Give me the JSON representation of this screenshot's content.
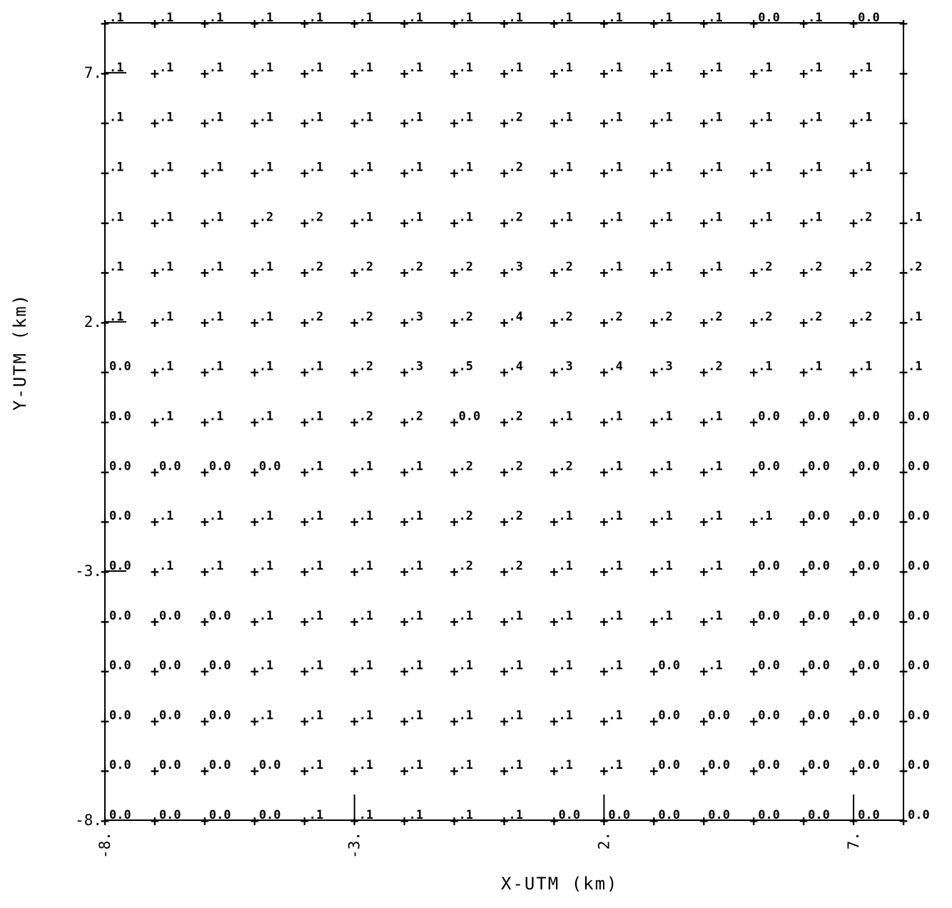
{
  "chart_data": {
    "type": "table",
    "title": "",
    "xlabel": "X-UTM (km)",
    "ylabel": "Y-UTM (km)",
    "xlim": [
      -8,
      8
    ],
    "ylim": [
      -8,
      8
    ],
    "x_ticks": [
      {
        "value": -8,
        "label": "-8."
      },
      {
        "value": -3,
        "label": "-3."
      },
      {
        "value": 2,
        "label": "2."
      },
      {
        "value": 7,
        "label": "7."
      }
    ],
    "y_ticks": [
      {
        "value": 7,
        "label": "7."
      },
      {
        "value": 2,
        "label": "2."
      },
      {
        "value": -3,
        "label": "-3."
      },
      {
        "value": -8,
        "label": "-8."
      }
    ],
    "grid": false,
    "x": [
      -8,
      -7,
      -6,
      -5,
      -4,
      -3,
      -2,
      -1,
      0,
      1,
      2,
      3,
      4,
      5,
      6,
      7,
      8
    ],
    "y": [
      8,
      7,
      6,
      5,
      4,
      3,
      2,
      1,
      0,
      -1,
      -2,
      -3,
      -4,
      -5,
      -6,
      -7,
      -8
    ],
    "values": [
      [
        ".1",
        ".1",
        ".1",
        ".1",
        ".1",
        ".1",
        ".1",
        ".1",
        ".1",
        ".1",
        ".1",
        ".1",
        ".1",
        "0.0",
        ".1",
        "0.0",
        ""
      ],
      [
        ".1",
        ".1",
        ".1",
        ".1",
        ".1",
        ".1",
        ".1",
        ".1",
        ".1",
        ".1",
        ".1",
        ".1",
        ".1",
        ".1",
        ".1",
        ".1",
        ""
      ],
      [
        ".1",
        ".1",
        ".1",
        ".1",
        ".1",
        ".1",
        ".1",
        ".1",
        ".2",
        ".1",
        ".1",
        ".1",
        ".1",
        ".1",
        ".1",
        ".1",
        ""
      ],
      [
        ".1",
        ".1",
        ".1",
        ".1",
        ".1",
        ".1",
        ".1",
        ".1",
        ".2",
        ".1",
        ".1",
        ".1",
        ".1",
        ".1",
        ".1",
        ".1",
        ""
      ],
      [
        ".1",
        ".1",
        ".1",
        ".2",
        ".2",
        ".1",
        ".1",
        ".1",
        ".2",
        ".1",
        ".1",
        ".1",
        ".1",
        ".1",
        ".1",
        ".2",
        ".1"
      ],
      [
        ".1",
        ".1",
        ".1",
        ".1",
        ".2",
        ".2",
        ".2",
        ".2",
        ".3",
        ".2",
        ".1",
        ".1",
        ".1",
        ".2",
        ".2",
        ".2",
        ".2"
      ],
      [
        ".1",
        ".1",
        ".1",
        ".1",
        ".2",
        ".2",
        ".3",
        ".2",
        ".4",
        ".2",
        ".2",
        ".2",
        ".2",
        ".2",
        ".2",
        ".2",
        ".1"
      ],
      [
        "0.0",
        ".1",
        ".1",
        ".1",
        ".1",
        ".2",
        ".3",
        ".5",
        ".4",
        ".3",
        ".4",
        ".3",
        ".2",
        ".1",
        ".1",
        ".1",
        ".1"
      ],
      [
        "0.0",
        ".1",
        ".1",
        ".1",
        ".1",
        ".2",
        ".2",
        "0.0",
        ".2",
        ".1",
        ".1",
        ".1",
        ".1",
        "0.0",
        "0.0",
        "0.0",
        "0.0"
      ],
      [
        "0.0",
        "0.0",
        "0.0",
        "0.0",
        ".1",
        ".1",
        ".1",
        ".2",
        ".2",
        ".2",
        ".1",
        ".1",
        ".1",
        "0.0",
        "0.0",
        "0.0",
        "0.0"
      ],
      [
        "0.0",
        ".1",
        ".1",
        ".1",
        ".1",
        ".1",
        ".1",
        ".2",
        ".2",
        ".1",
        ".1",
        ".1",
        ".1",
        ".1",
        "0.0",
        "0.0",
        "0.0"
      ],
      [
        "0.0",
        ".1",
        ".1",
        ".1",
        ".1",
        ".1",
        ".1",
        ".2",
        ".2",
        ".1",
        ".1",
        ".1",
        ".1",
        "0.0",
        "0.0",
        "0.0",
        "0.0"
      ],
      [
        "0.0",
        "0.0",
        "0.0",
        ".1",
        ".1",
        ".1",
        ".1",
        ".1",
        ".1",
        ".1",
        ".1",
        ".1",
        ".1",
        "0.0",
        "0.0",
        "0.0",
        "0.0"
      ],
      [
        "0.0",
        "0.0",
        "0.0",
        ".1",
        ".1",
        ".1",
        ".1",
        ".1",
        ".1",
        ".1",
        ".1",
        "0.0",
        ".1",
        "0.0",
        "0.0",
        "0.0",
        "0.0"
      ],
      [
        "0.0",
        "0.0",
        "0.0",
        ".1",
        ".1",
        ".1",
        ".1",
        ".1",
        ".1",
        ".1",
        ".1",
        "0.0",
        "0.0",
        "0.0",
        "0.0",
        "0.0",
        "0.0"
      ],
      [
        "0.0",
        "0.0",
        "0.0",
        "0.0",
        ".1",
        ".1",
        ".1",
        ".1",
        ".1",
        ".1",
        ".1",
        "0.0",
        "0.0",
        "0.0",
        "0.0",
        "0.0",
        "0.0"
      ],
      [
        "0.0",
        "0.0",
        "0.0",
        "0.0",
        ".1",
        ".1",
        ".1",
        ".1",
        ".1",
        "0.0",
        "0.0",
        "0.0",
        "0.0",
        "0.0",
        "0.0",
        "0.0",
        "0.0"
      ]
    ]
  }
}
